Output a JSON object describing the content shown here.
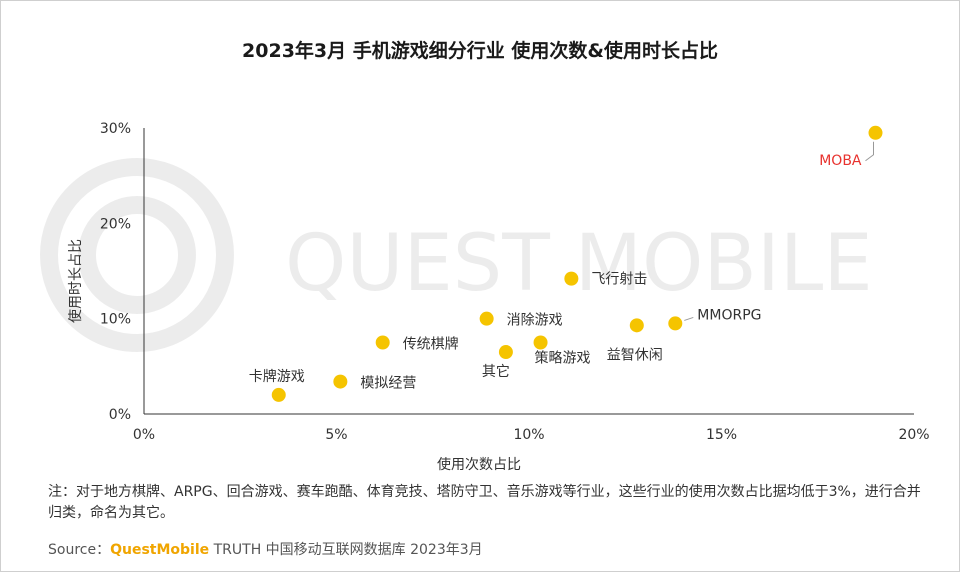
{
  "title": "2023年3月 手机游戏细分行业 使用次数&使用时长占比",
  "watermark": "QUEST MOBILE",
  "chart_data": {
    "type": "scatter",
    "xlabel": "使用次数占比",
    "ylabel": "使用时长占比",
    "xlim": [
      0,
      20
    ],
    "ylim": [
      0,
      30
    ],
    "x_ticks": [
      "0%",
      "5%",
      "10%",
      "15%",
      "20%"
    ],
    "y_ticks": [
      "0%",
      "10%",
      "20%",
      "30%"
    ],
    "grid": false,
    "point_color": "#F5C400",
    "highlight_color": "#E8322E",
    "points": [
      {
        "label": "MOBA",
        "x": 19.0,
        "y": 29.5
      },
      {
        "label": "飞行射击",
        "x": 11.1,
        "y": 14.2
      },
      {
        "label": "MMORPG",
        "x": 13.8,
        "y": 9.5
      },
      {
        "label": "益智休闲",
        "x": 12.8,
        "y": 9.3
      },
      {
        "label": "消除游戏",
        "x": 8.9,
        "y": 10.0
      },
      {
        "label": "策略游戏",
        "x": 10.3,
        "y": 7.5
      },
      {
        "label": "其它",
        "x": 9.4,
        "y": 6.5
      },
      {
        "label": "传统棋牌",
        "x": 6.2,
        "y": 7.5
      },
      {
        "label": "模拟经营",
        "x": 5.1,
        "y": 3.4
      },
      {
        "label": "卡牌游戏",
        "x": 3.5,
        "y": 2.0
      }
    ]
  },
  "note": "注：对于地方棋牌、ARPG、回合游戏、赛车跑酷、体育竞技、塔防守卫、音乐游戏等行业，这些行业的使用次数占比据均低于3%，进行合并归类，命名为其它。",
  "source": {
    "prefix": "Source：",
    "brand": "QuestMobile",
    "suffix": "TRUTH 中国移动互联网数据库 2023年3月"
  }
}
